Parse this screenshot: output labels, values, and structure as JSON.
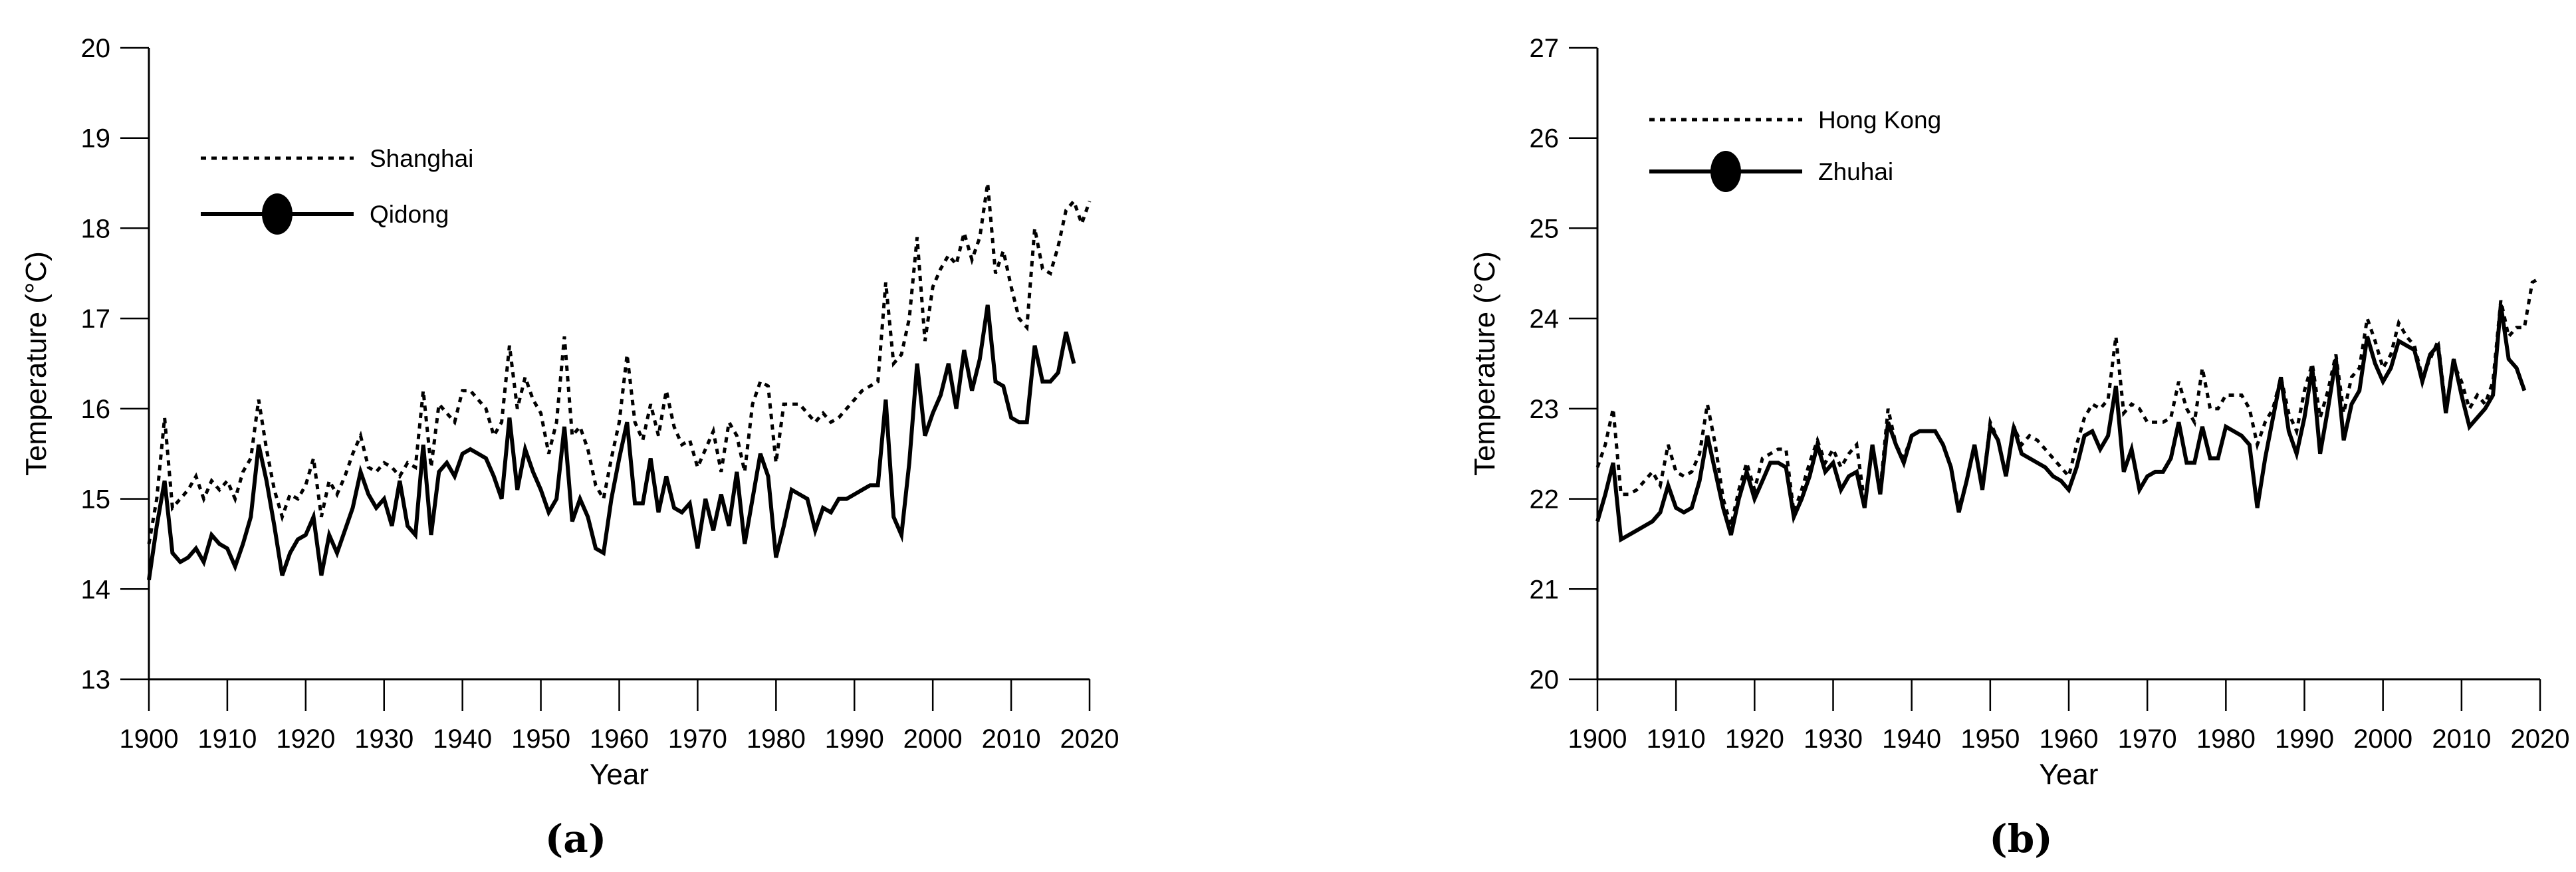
{
  "figure": {
    "background_color": "#ffffff",
    "line_color": "#000000",
    "captions": {
      "a": "(a)",
      "b": "(b)"
    }
  },
  "chart_data": [
    {
      "panel": "a",
      "type": "line",
      "title": "",
      "xlabel": "Year",
      "ylabel": "Temperature (°C)",
      "xlim": [
        1900,
        2020
      ],
      "ylim": [
        13,
        20
      ],
      "xticks": [
        1900,
        1910,
        1920,
        1930,
        1940,
        1950,
        1960,
        1970,
        1980,
        1990,
        2000,
        2010,
        2020
      ],
      "yticks": [
        13,
        14,
        15,
        16,
        17,
        18,
        19,
        20
      ],
      "grid": false,
      "legend_position": "top-left",
      "legend": [
        {
          "label": "Shanghai",
          "style": "dashed",
          "marker": "none"
        },
        {
          "label": "Qidong",
          "style": "solid",
          "marker": "filled-ellipse"
        }
      ],
      "years": [
        1900,
        1901,
        1902,
        1903,
        1904,
        1905,
        1906,
        1907,
        1908,
        1909,
        1910,
        1911,
        1912,
        1913,
        1914,
        1915,
        1916,
        1917,
        1918,
        1919,
        1920,
        1921,
        1922,
        1923,
        1924,
        1925,
        1926,
        1927,
        1928,
        1929,
        1930,
        1931,
        1932,
        1933,
        1934,
        1935,
        1936,
        1937,
        1938,
        1939,
        1940,
        1941,
        1942,
        1943,
        1944,
        1945,
        1946,
        1947,
        1948,
        1949,
        1950,
        1951,
        1952,
        1953,
        1954,
        1955,
        1956,
        1957,
        1958,
        1959,
        1960,
        1961,
        1962,
        1963,
        1964,
        1965,
        1966,
        1967,
        1968,
        1969,
        1970,
        1971,
        1972,
        1973,
        1974,
        1975,
        1976,
        1977,
        1978,
        1979,
        1980,
        1981,
        1982,
        1983,
        1984,
        1985,
        1986,
        1987,
        1988,
        1989,
        1990,
        1991,
        1992,
        1993,
        1994,
        1995,
        1996,
        1997,
        1998,
        1999,
        2000,
        2001,
        2002,
        2003,
        2004,
        2005,
        2006,
        2007,
        2008,
        2009,
        2010,
        2011,
        2012,
        2013,
        2014,
        2015,
        2016,
        2017,
        2018,
        2019,
        2020
      ],
      "series": [
        {
          "name": "Shanghai",
          "line_style": "dashed",
          "color": "#000000",
          "values": [
            14.5,
            15.0,
            15.9,
            14.9,
            15.0,
            15.1,
            15.25,
            15.0,
            15.2,
            15.1,
            15.2,
            15.0,
            15.3,
            15.45,
            16.1,
            15.55,
            15.1,
            14.8,
            15.05,
            15.0,
            15.15,
            15.45,
            14.8,
            15.2,
            15.05,
            15.25,
            15.5,
            15.7,
            15.35,
            15.3,
            15.4,
            15.35,
            15.25,
            15.4,
            15.35,
            16.2,
            15.35,
            16.05,
            15.95,
            15.85,
            16.2,
            16.2,
            16.1,
            16.0,
            15.7,
            15.85,
            16.7,
            16.0,
            16.35,
            16.1,
            15.95,
            15.5,
            15.85,
            16.8,
            15.7,
            15.8,
            15.55,
            15.15,
            15.0,
            15.45,
            15.85,
            16.6,
            15.85,
            15.65,
            16.05,
            15.7,
            16.2,
            15.8,
            15.6,
            15.65,
            15.35,
            15.55,
            15.75,
            15.3,
            15.85,
            15.7,
            15.3,
            16.05,
            16.3,
            16.25,
            15.4,
            16.05,
            16.05,
            16.05,
            15.95,
            15.85,
            15.95,
            15.85,
            15.9,
            16.0,
            16.1,
            16.2,
            16.25,
            16.3,
            17.4,
            16.5,
            16.6,
            17.0,
            17.9,
            16.75,
            17.35,
            17.55,
            17.7,
            17.6,
            17.95,
            17.65,
            17.9,
            18.5,
            17.5,
            17.75,
            17.35,
            17.0,
            16.9,
            18.0,
            17.55,
            17.5,
            17.8,
            18.2,
            18.3,
            18.05,
            18.3
          ]
        },
        {
          "name": "Qidong",
          "line_style": "solid",
          "color": "#000000",
          "last_year": 2018,
          "values": [
            14.1,
            14.7,
            15.2,
            14.4,
            14.3,
            14.35,
            14.45,
            14.3,
            14.6,
            14.5,
            14.45,
            14.25,
            14.5,
            14.8,
            15.6,
            15.2,
            14.7,
            14.15,
            14.4,
            14.55,
            14.6,
            14.8,
            14.15,
            14.6,
            14.4,
            14.65,
            14.9,
            15.3,
            15.05,
            14.9,
            15.0,
            14.7,
            15.2,
            14.7,
            14.6,
            15.6,
            14.6,
            15.3,
            15.4,
            15.25,
            15.5,
            15.55,
            15.5,
            15.45,
            15.25,
            15.0,
            15.9,
            15.1,
            15.55,
            15.3,
            15.1,
            14.85,
            15.0,
            15.8,
            14.75,
            15.0,
            14.8,
            14.45,
            14.4,
            15.0,
            15.45,
            15.85,
            14.95,
            14.95,
            15.45,
            14.85,
            15.25,
            14.9,
            14.85,
            14.95,
            14.45,
            15.0,
            14.65,
            15.05,
            14.7,
            15.3,
            14.5,
            15.0,
            15.5,
            15.25,
            14.35,
            14.7,
            15.1,
            15.05,
            15.0,
            14.65,
            14.9,
            14.85,
            15.0,
            15.0,
            15.05,
            15.1,
            15.15,
            15.15,
            16.1,
            14.8,
            14.6,
            15.4,
            16.5,
            15.7,
            15.95,
            16.15,
            16.5,
            16.0,
            16.65,
            16.2,
            16.55,
            17.15,
            16.3,
            16.25,
            15.9,
            15.85,
            15.85,
            16.7,
            16.3,
            16.3,
            16.4,
            16.85,
            16.5
          ]
        }
      ]
    },
    {
      "panel": "b",
      "type": "line",
      "title": "",
      "xlabel": "Year",
      "ylabel": "Temperature (°C)",
      "xlim": [
        1900,
        2020
      ],
      "ylim": [
        20,
        27
      ],
      "xticks": [
        1900,
        1910,
        1920,
        1930,
        1940,
        1950,
        1960,
        1970,
        1980,
        1990,
        2000,
        2010,
        2020
      ],
      "yticks": [
        20,
        21,
        22,
        23,
        24,
        25,
        26,
        27
      ],
      "grid": false,
      "legend_position": "top-left",
      "legend": [
        {
          "label": "Hong Kong",
          "style": "dashed",
          "marker": "none"
        },
        {
          "label": "Zhuhai",
          "style": "solid",
          "marker": "filled-ellipse"
        }
      ],
      "years": [
        1900,
        1901,
        1902,
        1903,
        1904,
        1905,
        1906,
        1907,
        1908,
        1909,
        1910,
        1911,
        1912,
        1913,
        1914,
        1915,
        1916,
        1917,
        1918,
        1919,
        1920,
        1921,
        1922,
        1923,
        1924,
        1925,
        1926,
        1927,
        1928,
        1929,
        1930,
        1931,
        1932,
        1933,
        1934,
        1935,
        1936,
        1937,
        1938,
        1939,
        1940,
        1941,
        1942,
        1943,
        1944,
        1945,
        1946,
        1947,
        1948,
        1949,
        1950,
        1951,
        1952,
        1953,
        1954,
        1955,
        1956,
        1957,
        1958,
        1959,
        1960,
        1961,
        1962,
        1963,
        1964,
        1965,
        1966,
        1967,
        1968,
        1969,
        1970,
        1971,
        1972,
        1973,
        1974,
        1975,
        1976,
        1977,
        1978,
        1979,
        1980,
        1981,
        1982,
        1983,
        1984,
        1985,
        1986,
        1987,
        1988,
        1989,
        1990,
        1991,
        1992,
        1993,
        1994,
        1995,
        1996,
        1997,
        1998,
        1999,
        2000,
        2001,
        2002,
        2003,
        2004,
        2005,
        2006,
        2007,
        2008,
        2009,
        2010,
        2011,
        2012,
        2013,
        2014,
        2015,
        2016,
        2017,
        2018,
        2019,
        2020
      ],
      "series": [
        {
          "name": "Hong Kong",
          "line_style": "dashed",
          "color": "#000000",
          "values": [
            22.35,
            22.6,
            23.0,
            22.05,
            22.05,
            22.1,
            22.2,
            22.3,
            22.15,
            22.6,
            22.3,
            22.25,
            22.3,
            22.5,
            23.05,
            22.6,
            22.0,
            21.7,
            22.1,
            22.4,
            22.1,
            22.45,
            22.5,
            22.55,
            22.55,
            21.85,
            22.1,
            22.4,
            22.65,
            22.4,
            22.55,
            22.35,
            22.5,
            22.6,
            21.95,
            22.55,
            22.1,
            23.0,
            22.6,
            22.45,
            22.7,
            22.75,
            22.75,
            22.75,
            22.6,
            22.35,
            21.9,
            22.2,
            22.6,
            22.1,
            22.85,
            22.65,
            22.25,
            22.8,
            22.6,
            22.7,
            22.65,
            22.55,
            22.45,
            22.35,
            22.25,
            22.6,
            22.9,
            23.05,
            23.0,
            23.1,
            23.8,
            22.95,
            23.05,
            23.0,
            22.85,
            22.85,
            22.85,
            22.9,
            23.3,
            23.0,
            22.85,
            23.45,
            23.0,
            23.0,
            23.15,
            23.15,
            23.15,
            23.0,
            22.6,
            22.85,
            23.0,
            23.35,
            22.95,
            22.75,
            23.2,
            23.5,
            22.9,
            23.2,
            23.6,
            22.95,
            23.35,
            23.45,
            24.0,
            23.75,
            23.45,
            23.6,
            23.95,
            23.8,
            23.7,
            23.35,
            23.55,
            23.75,
            23.0,
            23.5,
            23.3,
            23.0,
            23.15,
            23.05,
            23.3,
            24.2,
            23.8,
            23.9,
            23.9,
            24.4,
            24.45
          ]
        },
        {
          "name": "Zhuhai",
          "line_style": "solid",
          "color": "#000000",
          "last_year": 2018,
          "values": [
            21.75,
            22.05,
            22.4,
            21.55,
            21.6,
            21.65,
            21.7,
            21.75,
            21.85,
            22.15,
            21.9,
            21.85,
            21.9,
            22.2,
            22.7,
            22.3,
            21.9,
            21.6,
            22.0,
            22.3,
            22.0,
            22.2,
            22.4,
            22.4,
            22.35,
            21.8,
            22.0,
            22.25,
            22.6,
            22.3,
            22.4,
            22.1,
            22.25,
            22.3,
            21.9,
            22.6,
            22.05,
            22.85,
            22.6,
            22.4,
            22.7,
            22.75,
            22.75,
            22.75,
            22.6,
            22.35,
            21.85,
            22.2,
            22.6,
            22.1,
            22.8,
            22.65,
            22.25,
            22.8,
            22.5,
            22.45,
            22.4,
            22.35,
            22.25,
            22.2,
            22.1,
            22.35,
            22.7,
            22.75,
            22.55,
            22.7,
            23.25,
            22.3,
            22.55,
            22.1,
            22.25,
            22.3,
            22.3,
            22.45,
            22.85,
            22.4,
            22.4,
            22.8,
            22.45,
            22.45,
            22.8,
            22.75,
            22.7,
            22.6,
            21.9,
            22.45,
            22.9,
            23.35,
            22.75,
            22.5,
            22.9,
            23.45,
            22.5,
            23.0,
            23.55,
            22.65,
            23.05,
            23.2,
            23.8,
            23.5,
            23.3,
            23.45,
            23.75,
            23.7,
            23.65,
            23.3,
            23.6,
            23.7,
            22.95,
            23.55,
            23.15,
            22.8,
            22.9,
            23.0,
            23.15,
            24.15,
            23.55,
            23.45,
            23.2
          ]
        }
      ]
    }
  ]
}
